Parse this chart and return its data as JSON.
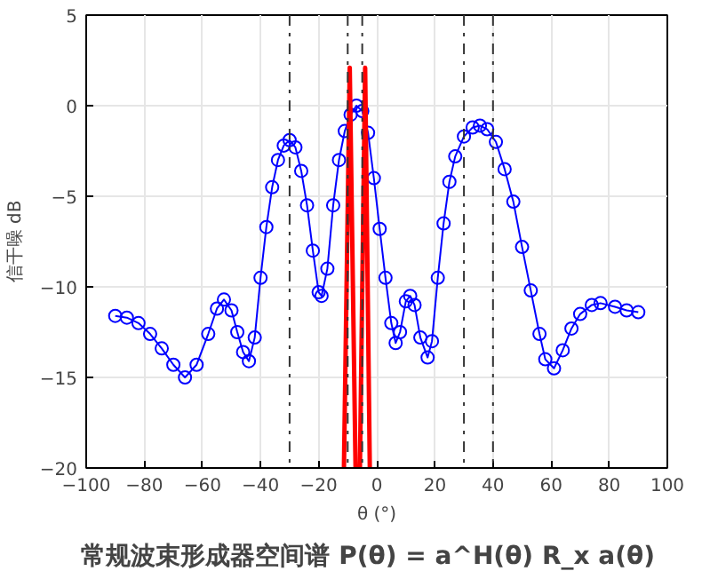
{
  "chart_data": {
    "type": "line",
    "title": "常规波束形成器空间谱   P(θ) = a^H(θ) R_x a(θ)",
    "xlabel": "θ (°)",
    "ylabel": "信干噪 dB",
    "xlim": [
      -100,
      100
    ],
    "xticks": [
      -100,
      -80,
      -60,
      -40,
      -20,
      0,
      20,
      40,
      60,
      80,
      100
    ],
    "ylim": [
      -20,
      5
    ],
    "yticks": [
      -20,
      -15,
      -10,
      -5,
      0,
      5
    ],
    "grid": true,
    "series": [
      {
        "color": "#0000ff",
        "marker": "circle",
        "x": [
          -90,
          -86,
          -82,
          -78,
          -74,
          -70,
          -66,
          -62,
          -58,
          -55,
          -52.6,
          -50,
          -48,
          -46,
          -44,
          -42,
          -40,
          -38,
          -36,
          -34,
          -32,
          -30,
          -28,
          -26,
          -24,
          -22,
          -20,
          -19,
          -17,
          -15,
          -13,
          -11,
          -9,
          -7,
          -5,
          -3,
          -1,
          1,
          3,
          5,
          6.5,
          8,
          10,
          11.5,
          13,
          15,
          17.5,
          19,
          21,
          23,
          25,
          27,
          30,
          33,
          35.5,
          38,
          41,
          44,
          47,
          50,
          53,
          56,
          58,
          61,
          64,
          67,
          70,
          74,
          77,
          82,
          86,
          90
        ],
        "values": [
          -11.6,
          -11.7,
          -12.0,
          -12.6,
          -13.4,
          -14.3,
          -15.0,
          -14.3,
          -12.6,
          -11.2,
          -10.7,
          -11.3,
          -12.5,
          -13.6,
          -14.1,
          -12.8,
          -9.5,
          -6.7,
          -4.5,
          -3.0,
          -2.2,
          -1.9,
          -2.3,
          -3.6,
          -5.5,
          -8.0,
          -10.3,
          -10.5,
          -9.0,
          -5.5,
          -3.0,
          -1.4,
          -0.5,
          0.0,
          -0.3,
          -1.5,
          -4.0,
          -6.8,
          -9.5,
          -12.0,
          -13.1,
          -12.5,
          -10.8,
          -10.5,
          -11.0,
          -12.8,
          -13.9,
          -13.0,
          -9.5,
          -6.5,
          -4.2,
          -2.8,
          -1.7,
          -1.2,
          -1.1,
          -1.3,
          -2.0,
          -3.5,
          -5.3,
          -7.8,
          -10.2,
          -12.6,
          -14.0,
          -14.5,
          -13.5,
          -12.3,
          -11.5,
          -11.0,
          -10.9,
          -11.1,
          -11.3,
          -11.4
        ]
      },
      {
        "color": "#ff0000",
        "marker": "none",
        "x": [
          -11.3,
          -9.3,
          -7.3,
          -5.8,
          -4,
          -2.4
        ],
        "values": [
          -20,
          2.1,
          -20,
          -20,
          2.1,
          -20
        ]
      }
    ],
    "ref_lines": [
      {
        "axis": "x",
        "value": -30,
        "color": "#333333",
        "line_style": "dashdot"
      },
      {
        "axis": "x",
        "value": -10,
        "color": "#333333",
        "line_style": "dashdot"
      },
      {
        "axis": "x",
        "value": -5,
        "color": "#333333",
        "line_style": "dashdot"
      },
      {
        "axis": "x",
        "value": 30,
        "color": "#333333",
        "line_style": "dashdot"
      },
      {
        "axis": "x",
        "value": 40,
        "color": "#333333",
        "line_style": "dashdot"
      }
    ]
  }
}
